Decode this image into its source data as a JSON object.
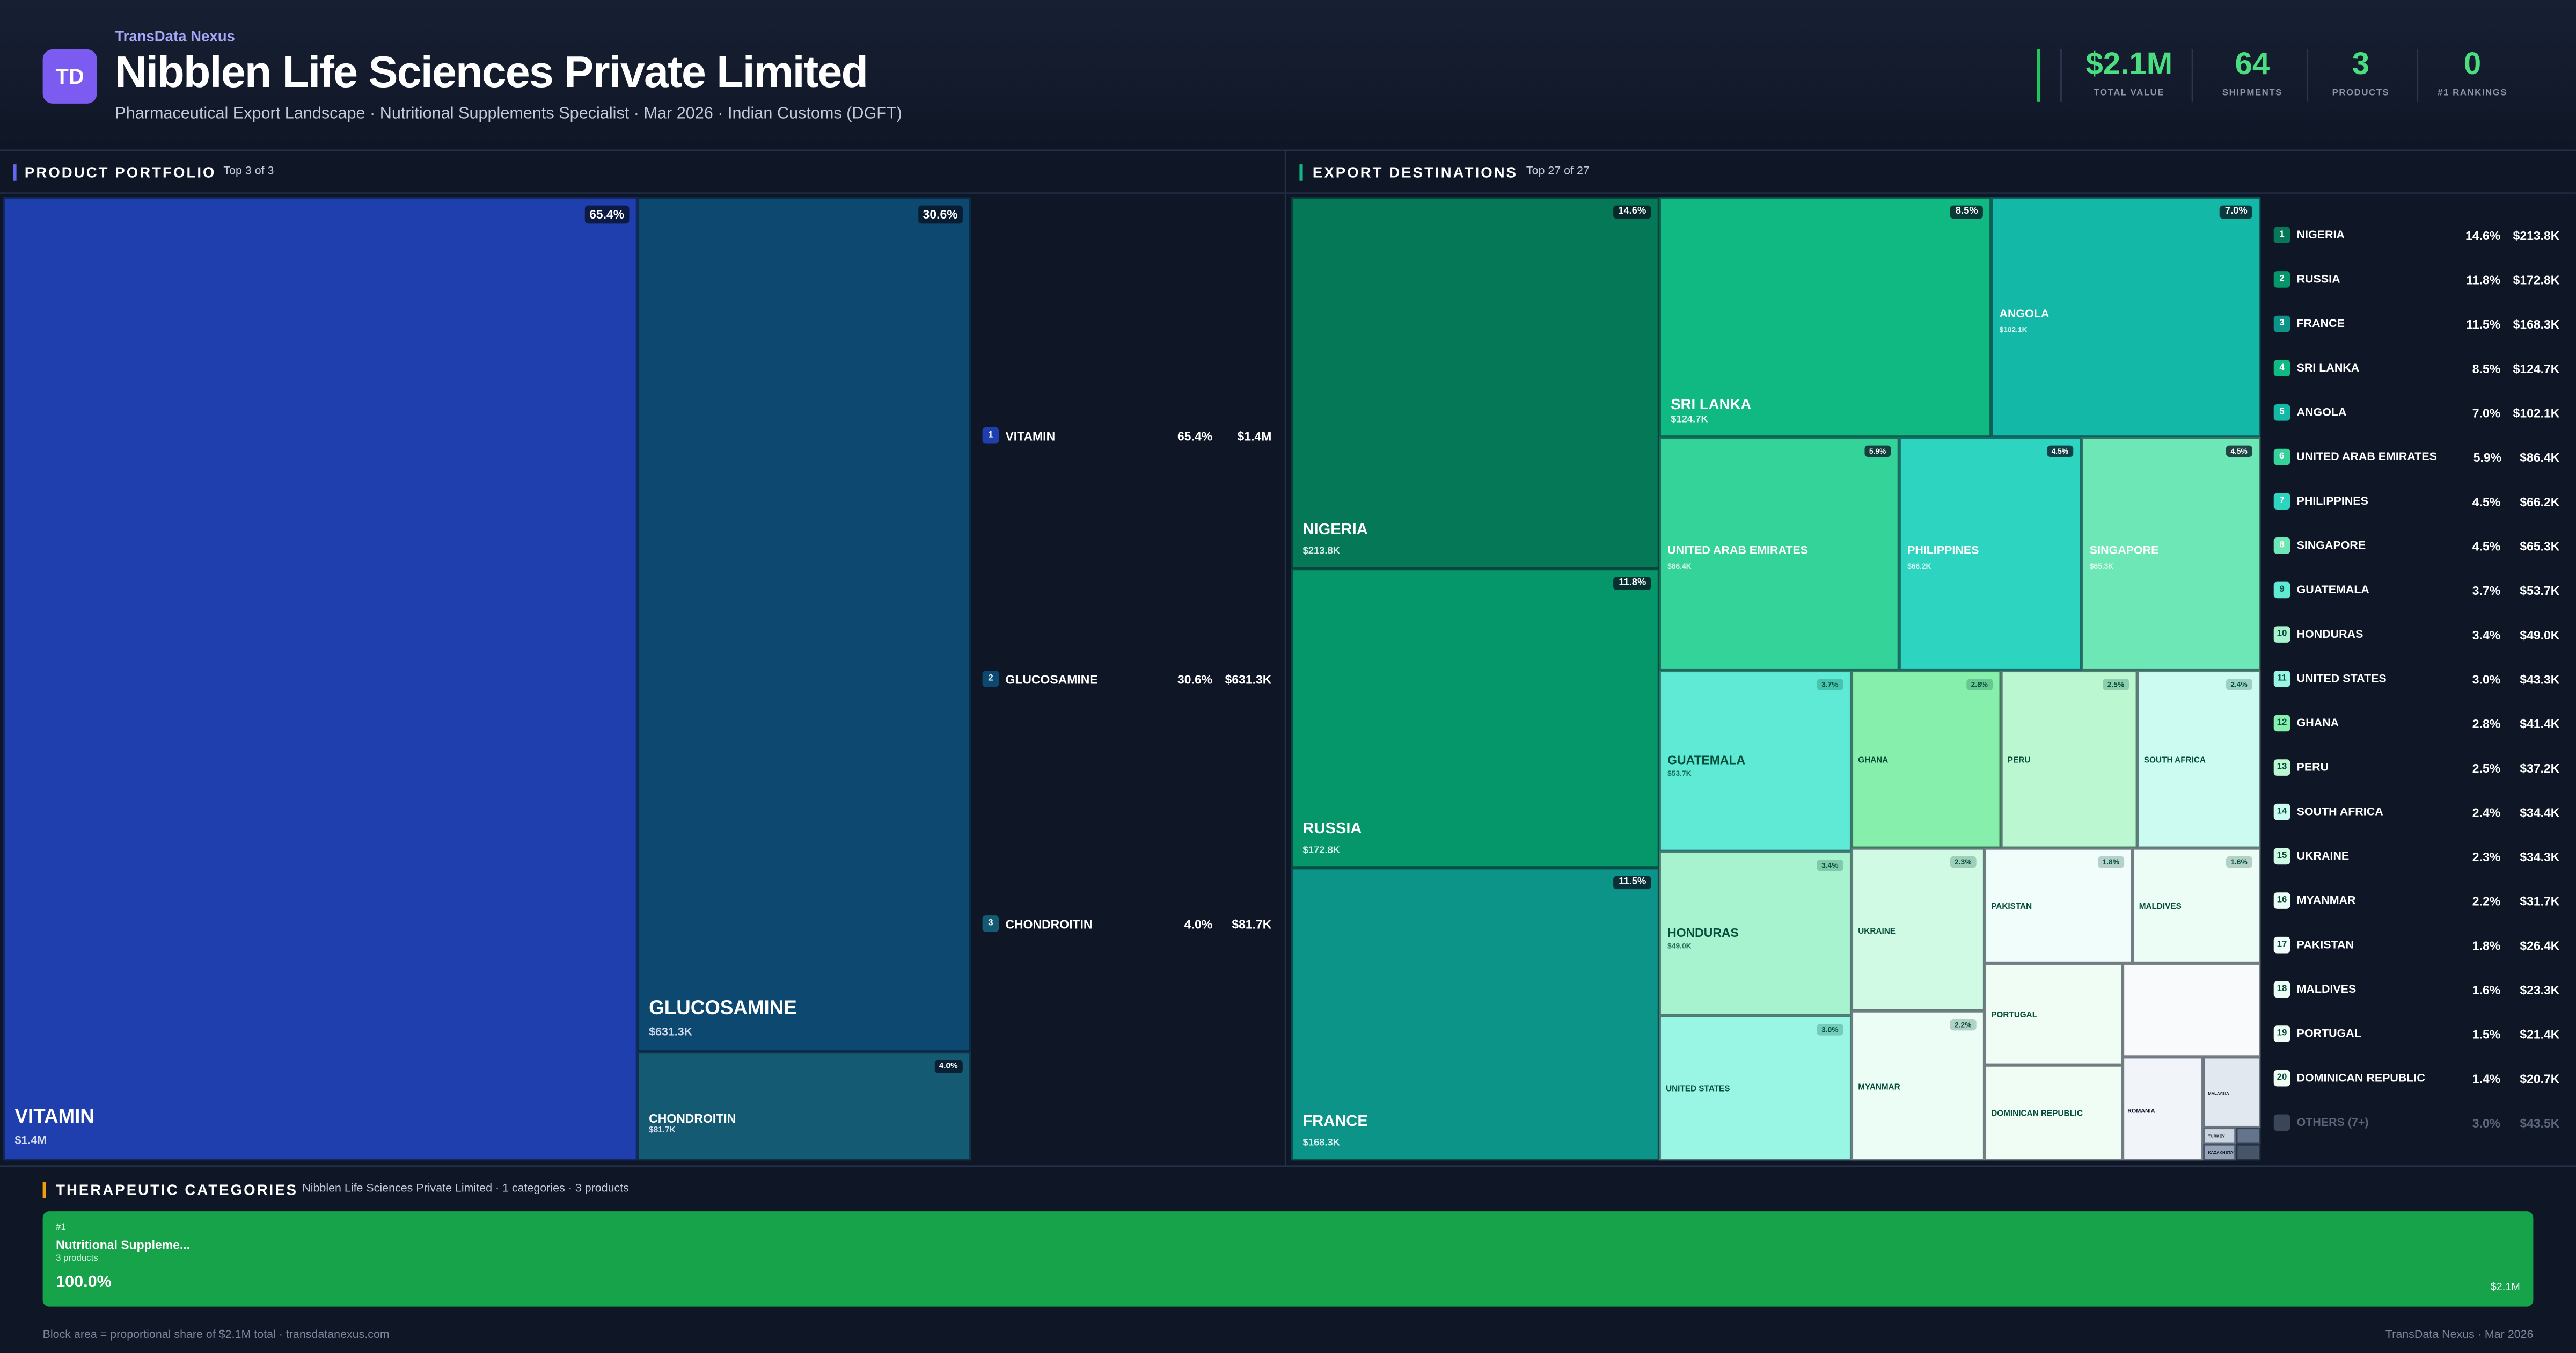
{
  "header": {
    "brand": "TransData Nexus",
    "logo": "TD",
    "title": "Nibblen Life Sciences Private Limited",
    "subtitle": "Pharmaceutical Export Landscape · Nutritional Supplements Specialist · Mar 2026 · Indian Customs (DGFT)"
  },
  "kpis": [
    {
      "value": "$2.1M",
      "label": "TOTAL VALUE"
    },
    {
      "value": "64",
      "label": "SHIPMENTS"
    },
    {
      "value": "3",
      "label": "PRODUCTS"
    },
    {
      "value": "0",
      "label": "#1 RANKINGS"
    }
  ],
  "portfolio": {
    "title": "PRODUCT PORTFOLIO",
    "note": "Top 3 of 3",
    "items": [
      {
        "name": "VITAMIN",
        "share": "65.4%",
        "value": "$1.4M"
      },
      {
        "name": "GLUCOSAMINE",
        "share": "30.6%",
        "value": "$631.3K"
      },
      {
        "name": "CHONDROITIN",
        "share": "4.0%",
        "value": "$81.7K"
      }
    ]
  },
  "destinations": {
    "title": "EXPORT DESTINATIONS",
    "note": "Top 27 of 27",
    "items": [
      {
        "name": "NIGERIA",
        "share": "14.6%",
        "value": "$213.8K"
      },
      {
        "name": "RUSSIA",
        "share": "11.8%",
        "value": "$172.8K"
      },
      {
        "name": "FRANCE",
        "share": "11.5%",
        "value": "$168.3K"
      },
      {
        "name": "SRI LANKA",
        "share": "8.5%",
        "value": "$124.7K"
      },
      {
        "name": "ANGOLA",
        "share": "7.0%",
        "value": "$102.1K"
      },
      {
        "name": "UNITED ARAB EMIRATES",
        "share": "5.9%",
        "value": "$86.4K"
      },
      {
        "name": "PHILIPPINES",
        "share": "4.5%",
        "value": "$66.2K"
      },
      {
        "name": "SINGAPORE",
        "share": "4.5%",
        "value": "$65.3K"
      },
      {
        "name": "GUATEMALA",
        "share": "3.7%",
        "value": "$53.7K"
      },
      {
        "name": "HONDURAS",
        "share": "3.4%",
        "value": "$49.0K"
      },
      {
        "name": "UNITED STATES",
        "share": "3.0%",
        "value": "$43.3K"
      },
      {
        "name": "GHANA",
        "share": "2.8%",
        "value": "$41.4K"
      },
      {
        "name": "PERU",
        "share": "2.5%",
        "value": "$37.2K"
      },
      {
        "name": "SOUTH AFRICA",
        "share": "2.4%",
        "value": "$34.4K"
      },
      {
        "name": "UKRAINE",
        "share": "2.3%",
        "value": "$34.3K"
      },
      {
        "name": "MYANMAR",
        "share": "2.2%",
        "value": "$31.7K"
      },
      {
        "name": "PAKISTAN",
        "share": "1.8%",
        "value": "$26.4K"
      },
      {
        "name": "MALDIVES",
        "share": "1.6%",
        "value": "$23.3K"
      },
      {
        "name": "PORTUGAL",
        "share": "1.5%",
        "value": "$21.4K"
      },
      {
        "name": "DOMINICAN REPUBLIC",
        "share": "1.4%",
        "value": "$20.7K"
      }
    ],
    "others": {
      "name": "OTHERS (7+)",
      "share": "3.0%",
      "value": "$43.5K"
    },
    "small_tiles": [
      "ROMANIA",
      "MALAYSIA",
      "TURKEY",
      "KAZAKHSTAN"
    ]
  },
  "categories": {
    "title": "THERAPEUTIC CATEGORIES",
    "note": "Nibblen Life Sciences Private Limited · 1 categories · 3 products",
    "items": [
      {
        "rank": "#1",
        "name": "Nutritional Suppleme...",
        "products": "3 products",
        "share": "100.0%",
        "value": "$2.1M"
      }
    ]
  },
  "footer": {
    "left": "Block area = proportional share of $2.1M total · transdatanexus.com",
    "right": "TransData Nexus · Mar 2026"
  }
}
